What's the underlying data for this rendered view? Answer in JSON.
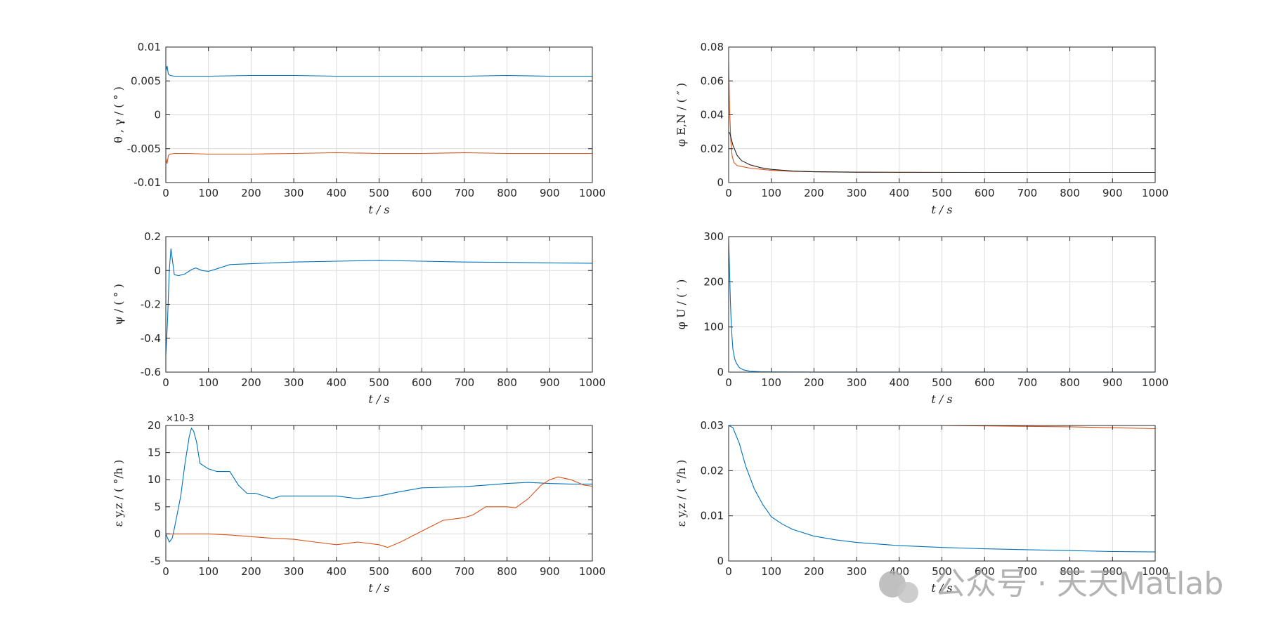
{
  "colors": {
    "series1": "#0072BD",
    "series2": "#D95319",
    "series3": "#222222",
    "grid": "#dcdcdc",
    "axis": "#262626"
  },
  "watermark": {
    "text": "公众号 · 天天Matlab"
  },
  "chart_data": [
    {
      "type": "line",
      "id": "p1",
      "title": "",
      "xlabel": "t  / s",
      "ylabel": "θ , γ / ( ° )",
      "xlim": [
        0,
        1000
      ],
      "ylim": [
        -0.01,
        0.01
      ],
      "xticks": [
        0,
        100,
        200,
        300,
        400,
        500,
        600,
        700,
        800,
        900,
        1000
      ],
      "xtick_labels": [
        "0",
        "100",
        "200",
        "300",
        "400",
        "500",
        "600",
        "700",
        "800",
        "900",
        "1000"
      ],
      "yticks": [
        -0.01,
        -0.005,
        0,
        0.005,
        0.01
      ],
      "ytick_labels": [
        "-0.01",
        "-0.005",
        "0",
        "0.005",
        "0.01"
      ],
      "grid": true,
      "series": [
        {
          "name": "θ",
          "color": "#0072BD",
          "x": [
            0,
            3,
            6,
            10,
            20,
            50,
            100,
            200,
            300,
            400,
            500,
            600,
            700,
            800,
            900,
            1000
          ],
          "y": [
            0.0065,
            0.0072,
            0.006,
            0.0058,
            0.0057,
            0.0057,
            0.0057,
            0.0058,
            0.0058,
            0.0057,
            0.0057,
            0.0057,
            0.0057,
            0.0058,
            0.0057,
            0.0057
          ]
        },
        {
          "name": "γ",
          "color": "#D95319",
          "x": [
            0,
            3,
            6,
            10,
            20,
            50,
            100,
            200,
            300,
            400,
            500,
            600,
            700,
            800,
            900,
            1000
          ],
          "y": [
            -0.0065,
            -0.0072,
            -0.006,
            -0.0058,
            -0.0057,
            -0.0057,
            -0.0058,
            -0.0058,
            -0.0057,
            -0.0056,
            -0.0057,
            -0.0057,
            -0.0056,
            -0.0057,
            -0.0057,
            -0.0057
          ]
        }
      ]
    },
    {
      "type": "line",
      "id": "p2",
      "title": "",
      "xlabel": "t  / s",
      "ylabel": "φ E,N / ( ″ )",
      "xlim": [
        0,
        1000
      ],
      "ylim": [
        0,
        0.08
      ],
      "xticks": [
        0,
        100,
        200,
        300,
        400,
        500,
        600,
        700,
        800,
        900,
        1000
      ],
      "xtick_labels": [
        "0",
        "100",
        "200",
        "300",
        "400",
        "500",
        "600",
        "700",
        "800",
        "900",
        "1000"
      ],
      "yticks": [
        0,
        0.02,
        0.04,
        0.06,
        0.08
      ],
      "ytick_labels": [
        "0",
        "0.02",
        "0.04",
        "0.06",
        "0.08"
      ],
      "grid": true,
      "series": [
        {
          "name": "φE",
          "color": "#D95319",
          "x": [
            0,
            2,
            5,
            8,
            12,
            20,
            30,
            50,
            100,
            150,
            200,
            300,
            400,
            600,
            800,
            1000
          ],
          "y": [
            0.072,
            0.045,
            0.025,
            0.016,
            0.012,
            0.01,
            0.0095,
            0.0085,
            0.0072,
            0.0066,
            0.0064,
            0.0062,
            0.0061,
            0.006,
            0.006,
            0.006
          ]
        },
        {
          "name": "φN",
          "color": "#222222",
          "x": [
            0,
            3,
            6,
            10,
            15,
            20,
            30,
            50,
            75,
            100,
            150,
            200,
            300,
            500,
            700,
            1000
          ],
          "y": [
            0.03,
            0.029,
            0.026,
            0.022,
            0.019,
            0.016,
            0.013,
            0.0105,
            0.0088,
            0.0078,
            0.0068,
            0.0064,
            0.0061,
            0.006,
            0.006,
            0.006
          ]
        }
      ]
    },
    {
      "type": "line",
      "id": "p3",
      "title": "",
      "xlabel": "t  / s",
      "ylabel": "ψ / ( ° )",
      "xlim": [
        0,
        1000
      ],
      "ylim": [
        -0.6,
        0.2
      ],
      "xticks": [
        0,
        100,
        200,
        300,
        400,
        500,
        600,
        700,
        800,
        900,
        1000
      ],
      "xtick_labels": [
        "0",
        "100",
        "200",
        "300",
        "400",
        "500",
        "600",
        "700",
        "800",
        "900",
        "1000"
      ],
      "yticks": [
        -0.6,
        -0.4,
        -0.2,
        0,
        0.2
      ],
      "ytick_labels": [
        "-0.6",
        "-0.4",
        "-0.2",
        "0",
        "0.2"
      ],
      "grid": true,
      "series": [
        {
          "name": "ψ",
          "color": "#0072BD",
          "x": [
            0,
            4,
            8,
            12,
            16,
            20,
            30,
            45,
            60,
            70,
            85,
            100,
            120,
            150,
            200,
            300,
            400,
            500,
            600,
            700,
            800,
            900,
            1000
          ],
          "y": [
            -0.5,
            -0.3,
            0.0,
            0.13,
            0.05,
            -0.025,
            -0.03,
            -0.02,
            0.005,
            0.015,
            0.0,
            -0.005,
            0.01,
            0.035,
            0.04,
            0.05,
            0.055,
            0.06,
            0.055,
            0.05,
            0.048,
            0.045,
            0.043
          ]
        }
      ]
    },
    {
      "type": "line",
      "id": "p4",
      "title": "",
      "xlabel": "t  / s",
      "ylabel": "φ U / ( ′ )",
      "xlim": [
        0,
        1000
      ],
      "ylim": [
        0,
        300
      ],
      "xticks": [
        0,
        100,
        200,
        300,
        400,
        500,
        600,
        700,
        800,
        900,
        1000
      ],
      "xtick_labels": [
        "0",
        "100",
        "200",
        "300",
        "400",
        "500",
        "600",
        "700",
        "800",
        "900",
        "1000"
      ],
      "yticks": [
        0,
        100,
        200,
        300
      ],
      "ytick_labels": [
        "0",
        "100",
        "200",
        "300"
      ],
      "grid": true,
      "series": [
        {
          "name": "φU",
          "color": "#0072BD",
          "x": [
            0,
            2,
            4,
            6,
            8,
            10,
            14,
            18,
            25,
            35,
            50,
            75,
            100,
            150,
            200,
            400,
            700,
            1000
          ],
          "y": [
            295,
            230,
            160,
            110,
            75,
            50,
            30,
            20,
            10,
            5,
            2,
            1,
            0.5,
            0.3,
            0.2,
            0.1,
            0.1,
            0.1
          ]
        }
      ]
    },
    {
      "type": "line",
      "id": "p5",
      "title": "",
      "xlabel": "t  / s",
      "ylabel": "ε y,z / ( °/h )",
      "exponent_label": "×10-3",
      "xlim": [
        0,
        1000
      ],
      "ylim": [
        -5,
        20
      ],
      "xticks": [
        0,
        100,
        200,
        300,
        400,
        500,
        600,
        700,
        800,
        900,
        1000
      ],
      "xtick_labels": [
        "0",
        "100",
        "200",
        "300",
        "400",
        "500",
        "600",
        "700",
        "800",
        "900",
        "1000"
      ],
      "yticks": [
        -5,
        0,
        5,
        10,
        15,
        20
      ],
      "ytick_labels": [
        "-5",
        "0",
        "5",
        "10",
        "15",
        "20"
      ],
      "grid": true,
      "series": [
        {
          "name": "εy",
          "color": "#0072BD",
          "x": [
            0,
            8,
            15,
            20,
            25,
            35,
            45,
            55,
            60,
            65,
            72,
            80,
            90,
            100,
            120,
            150,
            170,
            190,
            210,
            230,
            250,
            270,
            300,
            350,
            400,
            450,
            500,
            550,
            600,
            650,
            700,
            750,
            800,
            850,
            900,
            950,
            1000
          ],
          "y": [
            0,
            -1.5,
            -0.8,
            1,
            3,
            7,
            13,
            18,
            19.5,
            19,
            17,
            13,
            12.5,
            12,
            11.5,
            11.5,
            9,
            7.5,
            7.5,
            7,
            6.5,
            7,
            7,
            7,
            7,
            6.5,
            7,
            7.8,
            8.5,
            8.6,
            8.7,
            9,
            9.3,
            9.5,
            9.3,
            9.2,
            9.2
          ]
        },
        {
          "name": "εz",
          "color": "#D95319",
          "x": [
            0,
            50,
            100,
            150,
            200,
            250,
            300,
            350,
            400,
            450,
            500,
            520,
            550,
            600,
            650,
            700,
            720,
            750,
            800,
            820,
            850,
            880,
            900,
            920,
            950,
            980,
            1000
          ],
          "y": [
            0,
            0,
            0,
            -0.2,
            -0.5,
            -0.8,
            -1,
            -1.5,
            -2,
            -1.5,
            -2,
            -2.5,
            -1.5,
            0.5,
            2.5,
            3,
            3.5,
            5,
            5,
            4.8,
            6.5,
            9,
            10,
            10.5,
            10,
            9,
            8.8
          ]
        }
      ]
    },
    {
      "type": "line",
      "id": "p6",
      "title": "",
      "xlabel": "t  / s",
      "ylabel": "ε y,z / ( °/h )",
      "xlim": [
        0,
        1000
      ],
      "ylim": [
        0,
        0.03
      ],
      "xticks": [
        0,
        100,
        200,
        300,
        400,
        500,
        600,
        700,
        800,
        900,
        1000
      ],
      "xtick_labels": [
        "0",
        "100",
        "200",
        "300",
        "400",
        "500",
        "600",
        "700",
        "800",
        "900",
        "1000"
      ],
      "yticks": [
        0,
        0.01,
        0.02,
        0.03
      ],
      "ytick_labels": [
        "0",
        "0.01",
        "0.02",
        "0.03"
      ],
      "grid": true,
      "series": [
        {
          "name": "εz",
          "color": "#D95319",
          "x": [
            0,
            100,
            200,
            300,
            400,
            500,
            600,
            700,
            800,
            900,
            1000
          ],
          "y": [
            0.03,
            0.03,
            0.03,
            0.03,
            0.03,
            0.03,
            0.0299,
            0.0298,
            0.0297,
            0.0295,
            0.0293
          ]
        },
        {
          "name": "εy",
          "color": "#0072BD",
          "x": [
            0,
            10,
            25,
            40,
            60,
            80,
            100,
            125,
            150,
            200,
            250,
            300,
            400,
            500,
            600,
            700,
            800,
            900,
            1000
          ],
          "y": [
            0.03,
            0.0295,
            0.026,
            0.021,
            0.016,
            0.0125,
            0.0098,
            0.0082,
            0.007,
            0.0055,
            0.0047,
            0.0041,
            0.0034,
            0.003,
            0.0027,
            0.0025,
            0.0023,
            0.0021,
            0.002
          ]
        }
      ]
    }
  ]
}
